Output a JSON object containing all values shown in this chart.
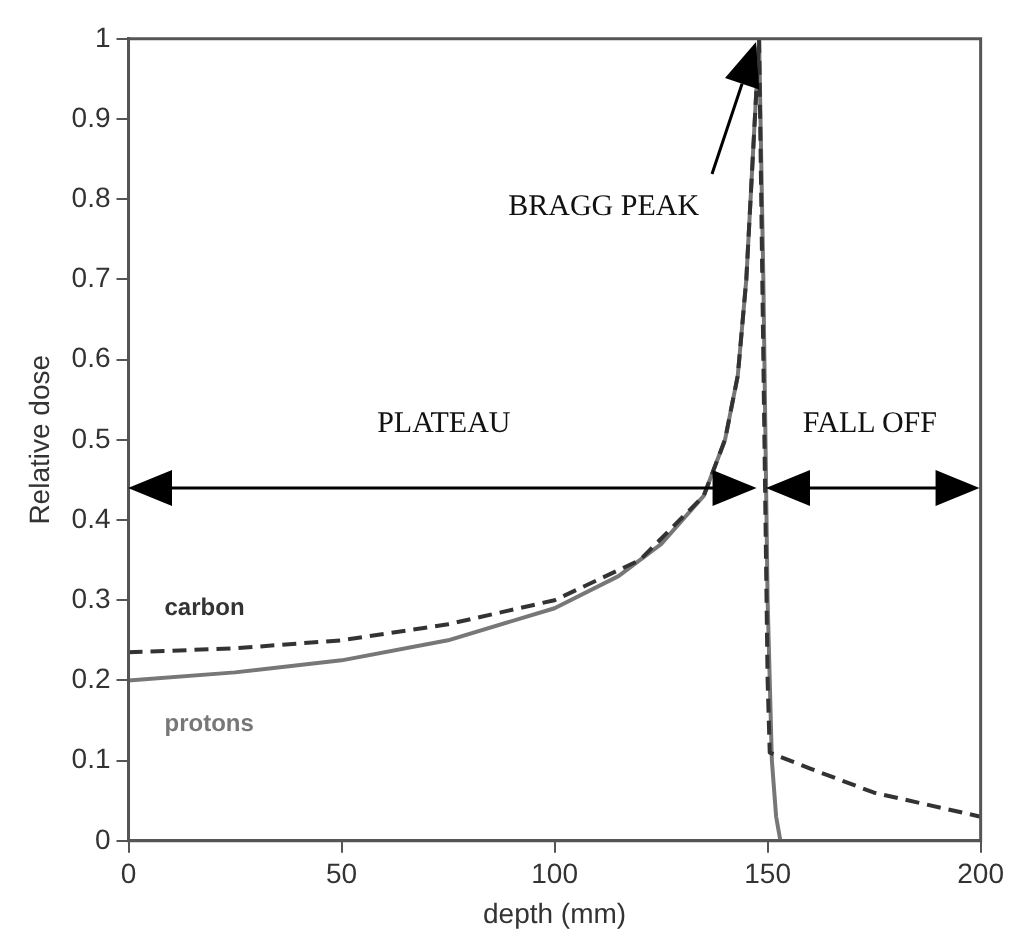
{
  "chart_data": {
    "type": "line",
    "xlabel": "depth (mm)",
    "ylabel": "Relative dose",
    "xlim": [
      0,
      200
    ],
    "xticks": [
      0,
      50,
      100,
      150,
      200
    ],
    "ylim": [
      0,
      1
    ],
    "yticks": [
      0,
      0.1,
      0.2,
      0.3,
      0.4,
      0.5,
      0.6,
      0.7,
      0.8,
      0.9,
      1
    ],
    "grid": false,
    "legend": false,
    "marker": "none",
    "series": [
      {
        "name": "carbon",
        "color": "#333333",
        "line_style": "dashed",
        "x": [
          0,
          25,
          50,
          75,
          100,
          120,
          135,
          140,
          143,
          145,
          146,
          147,
          148,
          149,
          150,
          150.5,
          160,
          175,
          200
        ],
        "values": [
          0.235,
          0.24,
          0.25,
          0.27,
          0.3,
          0.35,
          0.43,
          0.5,
          0.58,
          0.7,
          0.8,
          0.9,
          1,
          0.6,
          0.2,
          0.11,
          0.09,
          0.06,
          0.03
        ]
      },
      {
        "name": "protons",
        "color": "#777777",
        "line_style": "solid",
        "x": [
          0,
          25,
          50,
          75,
          100,
          115,
          125,
          135,
          140,
          143,
          145,
          146,
          147,
          148,
          149,
          150,
          151,
          152,
          153
        ],
        "values": [
          0.2,
          0.21,
          0.225,
          0.25,
          0.29,
          0.33,
          0.37,
          0.43,
          0.5,
          0.58,
          0.7,
          0.8,
          0.9,
          1,
          0.7,
          0.3,
          0.1,
          0.03,
          0
        ]
      }
    ],
    "annotations": [
      "PLATEAU",
      "FALL OFF",
      "BRAGG PEAK"
    ]
  }
}
